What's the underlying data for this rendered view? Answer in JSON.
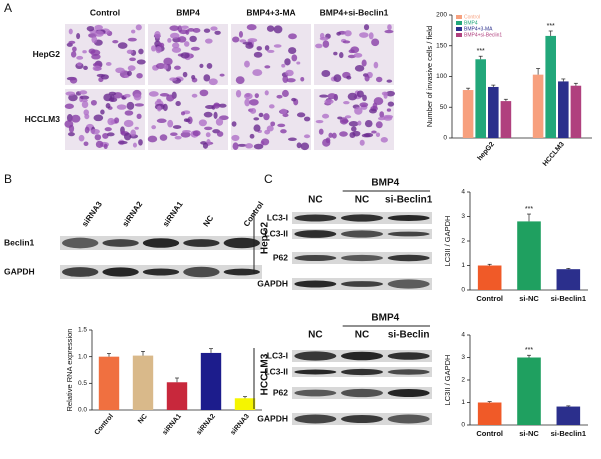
{
  "chart_data": [
    {
      "type": "grouped_bar",
      "y_label": "Number of invasive cells / field",
      "categories": [
        "hepG2",
        "HCCLM3"
      ],
      "series": [
        {
          "name": "Control",
          "color": "#f7a07e",
          "values": [
            78,
            103
          ],
          "errors": [
            3,
            10
          ]
        },
        {
          "name": "BMP4",
          "color": "#22a77a",
          "values": [
            128,
            166
          ],
          "errors": [
            5,
            8
          ]
        },
        {
          "name": "BMP4+3-MA",
          "color": "#2b2f8c",
          "values": [
            83,
            92
          ],
          "errors": [
            3,
            4
          ]
        },
        {
          "name": "BMP4+si-Beclin1",
          "color": "#b0407e",
          "values": [
            60,
            85
          ],
          "errors": [
            3,
            4
          ]
        }
      ],
      "significance": {
        "series": "BMP4",
        "label": "***"
      },
      "ylim": [
        0,
        200
      ],
      "yticks": [
        0,
        50,
        100,
        150,
        200
      ],
      "legend": "top-left"
    },
    {
      "type": "bar",
      "y_label": "Relative RNA expression",
      "categories": [
        "Control",
        "NC",
        "siRNA1",
        "siRNA2",
        "siRNA3"
      ],
      "values": [
        1.0,
        1.02,
        0.52,
        1.07,
        0.22
      ],
      "errors": [
        0.06,
        0.08,
        0.08,
        0.08,
        0.03
      ],
      "colors": [
        "#f07040",
        "#d9b98a",
        "#c8283c",
        "#1c1c8c",
        "#f5f500"
      ],
      "ylim": [
        0,
        1.5
      ],
      "yticks": [
        {
          "value": 0,
          "label": "0.0"
        },
        {
          "value": 0.5,
          "label": "0.5"
        },
        {
          "value": 1,
          "label": "1.0"
        },
        {
          "value": 1.5,
          "label": "1.5"
        }
      ]
    },
    {
      "type": "bar",
      "y_label": "LC3II / GAPDH",
      "categories": [
        "Control",
        "si-NC",
        "si-Beclin1"
      ],
      "values": [
        1.0,
        2.8,
        0.85
      ],
      "errors": [
        0.05,
        0.3,
        0.03
      ],
      "colors": [
        "#f05a28",
        "#1fa060",
        "#2b2f8c"
      ],
      "significance": {
        "category": "si-NC",
        "label": "***"
      },
      "ylim": [
        0,
        4
      ],
      "yticks": [
        0,
        1,
        2,
        3,
        4
      ]
    },
    {
      "type": "bar",
      "y_label": "LC3II / GAPDH",
      "categories": [
        "Control",
        "si-NC",
        "si-Beclin1"
      ],
      "values": [
        1.0,
        3.0,
        0.82
      ],
      "errors": [
        0.04,
        0.1,
        0.03
      ],
      "colors": [
        "#f05a28",
        "#1fa060",
        "#2b2f8c"
      ],
      "significance": {
        "category": "si-NC",
        "label": "***"
      },
      "ylim": [
        0,
        4
      ],
      "yticks": [
        0,
        1,
        2,
        3,
        4
      ]
    }
  ],
  "panel_a": {
    "label": "A",
    "columns": [
      "Control",
      "BMP4",
      "BMP4+3-MA",
      "BMP4+si-Beclin1"
    ],
    "rows": [
      "HepG2",
      "HCCLM3"
    ]
  },
  "panel_b": {
    "label": "B",
    "lanes": [
      "siRNA3",
      "siRNA2",
      "siRNA1",
      "NC",
      "Control"
    ],
    "bands": [
      "Beclin1",
      "GAPDH"
    ]
  },
  "panel_c": {
    "label": "C",
    "blots": [
      {
        "cell": "HepG2",
        "group": "BMP4",
        "lanes": [
          "NC",
          "NC",
          "si-Beclin1"
        ],
        "bands": [
          "LC3-I",
          "LC3-II",
          "P62",
          "GAPDH"
        ]
      },
      {
        "cell": "HCCLM3",
        "group": "BMP4",
        "lanes": [
          "NC",
          "NC",
          "si-Beclin"
        ],
        "bands": [
          "LC3-I",
          "LC3-II",
          "P62",
          "GAPDH"
        ]
      }
    ]
  }
}
